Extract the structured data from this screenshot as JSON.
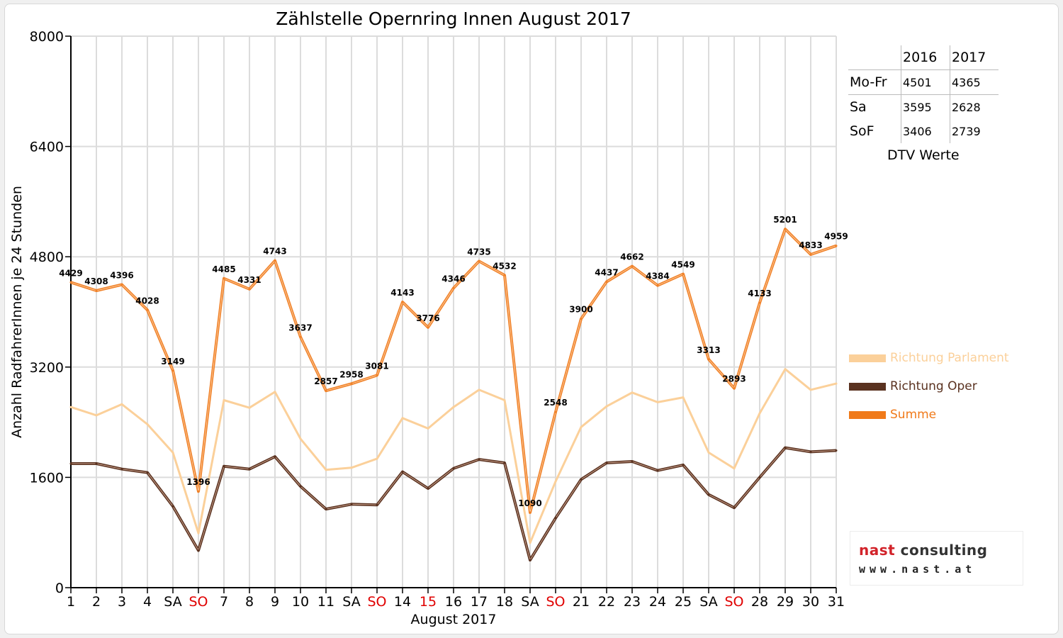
{
  "chart_data": {
    "type": "line",
    "title": "Zählstelle Opernring Innen August 2017",
    "xlabel": "August 2017",
    "ylabel": "Anzahl RadfahrerInnen je 24 Stunden",
    "ylim": [
      0,
      8000
    ],
    "yticks": [
      "0",
      "1600",
      "3200",
      "4800",
      "6400",
      "8000"
    ],
    "grid": true,
    "legend_position": "right",
    "categories": [
      "1",
      "2",
      "3",
      "4",
      "SA",
      "SO",
      "7",
      "8",
      "9",
      "10",
      "11",
      "SA",
      "SO",
      "14",
      "15",
      "16",
      "17",
      "18",
      "SA",
      "SO",
      "21",
      "22",
      "23",
      "24",
      "25",
      "SA",
      "SO",
      "28",
      "29",
      "30",
      "31"
    ],
    "red_categories": [
      5,
      12,
      14,
      19,
      26
    ],
    "series": [
      {
        "name": "Richtung Parlament",
        "color": "#fbd09a",
        "values": [
          2620,
          2500,
          2660,
          2370,
          1960,
          790,
          2720,
          2610,
          2840,
          2160,
          1710,
          1740,
          1870,
          2460,
          2310,
          2620,
          2870,
          2720,
          650,
          1540,
          2330,
          2630,
          2830,
          2690,
          2760,
          1960,
          1730,
          2530,
          3170,
          2870,
          2960
        ]
      },
      {
        "name": "Richtung Oper",
        "color": "#5a3220",
        "values": [
          1800,
          1800,
          1720,
          1670,
          1180,
          540,
          1760,
          1720,
          1900,
          1470,
          1140,
          1210,
          1200,
          1680,
          1440,
          1730,
          1860,
          1810,
          400,
          1010,
          1570,
          1810,
          1830,
          1700,
          1780,
          1350,
          1160,
          1600,
          2030,
          1970,
          1990
        ]
      },
      {
        "name": "Summe",
        "color": "#f0822a",
        "values": [
          4429,
          4308,
          4396,
          4028,
          3149,
          1396,
          4485,
          4331,
          4743,
          3637,
          2857,
          2958,
          3081,
          4143,
          3776,
          4346,
          4735,
          4532,
          1090,
          2548,
          3900,
          4437,
          4662,
          4384,
          4549,
          3313,
          2893,
          4133,
          5201,
          4833,
          4959
        ],
        "labels": [
          "4429",
          "4308",
          "4396",
          "4028",
          "3149",
          "1396",
          "4485",
          "4331",
          "4743",
          "3637",
          "2857",
          "2958",
          "3081",
          "4143",
          "3776",
          "4346",
          "4735",
          "4532",
          "1090",
          "2548",
          "3900",
          "4437",
          "4662",
          "4384",
          "4549",
          "3313",
          "2893",
          "4133",
          "5201",
          "4833",
          "4959"
        ]
      }
    ]
  },
  "dtv_table": {
    "headers": [
      "",
      "2016",
      "2017"
    ],
    "rows": [
      {
        "label": "Mo-Fr",
        "y2016": "4501",
        "y2017": "4365"
      },
      {
        "label": "Sa",
        "y2016": "3595",
        "y2017": "2628"
      },
      {
        "label": "SoF",
        "y2016": "3406",
        "y2017": "2739"
      }
    ],
    "caption": "DTV Werte"
  },
  "logo": {
    "line1_a": "nast",
    "line1_b": "consulting",
    "line2": "www.nast.at"
  }
}
